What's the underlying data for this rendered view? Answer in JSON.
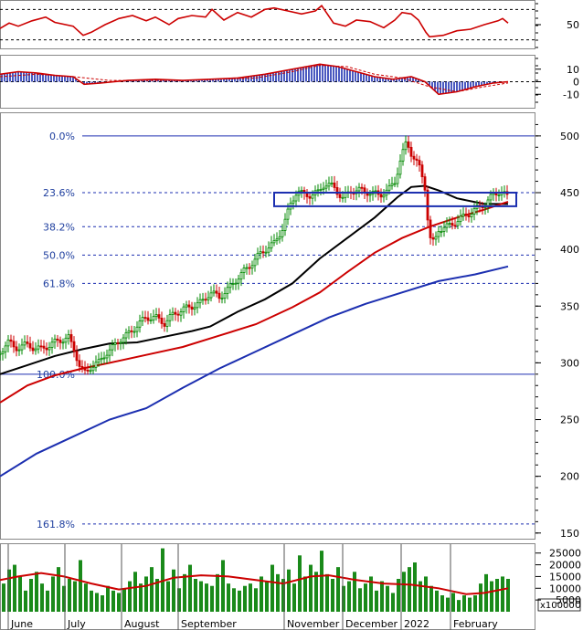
{
  "chart_data": [
    {
      "type": "line",
      "panel": "rsi",
      "y_ticks": [
        50
      ],
      "guide_levels": [
        30,
        70
      ],
      "ylim": [
        20,
        80
      ],
      "series": [
        {
          "color": "#cc0000",
          "x": [
            0,
            10,
            20,
            35,
            50,
            60,
            80,
            91,
            100,
            115,
            130,
            145,
            160,
            170,
            185,
            195,
            210,
            225,
            232,
            245,
            260,
            275,
            290,
            300,
            315,
            330,
            345,
            352,
            365,
            378,
            390,
            405,
            420,
            432,
            440,
            450,
            458,
            466,
            470,
            485,
            500,
            515,
            530,
            545,
            550,
            556
          ],
          "y": [
            45,
            52,
            48,
            55,
            60,
            53,
            48,
            36,
            40,
            50,
            58,
            62,
            55,
            60,
            50,
            58,
            62,
            60,
            70,
            56,
            66,
            60,
            70,
            72,
            68,
            64,
            68,
            75,
            52,
            48,
            56,
            54,
            46,
            56,
            66,
            64,
            56,
            40,
            34,
            36,
            42,
            44,
            50,
            55,
            58,
            52
          ]
        }
      ]
    },
    {
      "type": "line",
      "panel": "macd",
      "y_ticks": [
        10,
        0,
        -10
      ],
      "ylim": [
        -20,
        20
      ],
      "series": [
        {
          "color": "#cc0000",
          "x": [
            0,
            20,
            40,
            60,
            80,
            92,
            110,
            140,
            170,
            200,
            230,
            260,
            290,
            320,
            350,
            370,
            390,
            410,
            430,
            450,
            465,
            480,
            500,
            520,
            540,
            556
          ],
          "y": [
            6,
            8,
            7,
            5,
            4,
            -2,
            -1,
            1,
            2,
            1,
            2,
            3,
            6,
            10,
            14,
            12,
            8,
            4,
            2,
            4,
            0,
            -10,
            -8,
            -4,
            -1,
            0
          ]
        },
        {
          "color": "#cc0000",
          "dashed": true,
          "x": [
            0,
            40,
            80,
            120,
            160,
            200,
            240,
            280,
            320,
            350,
            380,
            410,
            440,
            470,
            500,
            530,
            556
          ],
          "y": [
            4,
            6,
            4,
            1,
            1,
            1,
            2,
            3,
            8,
            13,
            12,
            6,
            3,
            -4,
            -8,
            -4,
            -1
          ]
        }
      ]
    },
    {
      "type": "line",
      "panel": "price",
      "x_labels": [
        "June",
        "July",
        "August",
        "September",
        "November",
        "December",
        "2022",
        "February"
      ],
      "y_ticks": [
        500,
        450,
        400,
        350,
        300,
        250,
        200,
        150
      ],
      "ylim": [
        145,
        520
      ],
      "fibonacci": [
        {
          "label": "0.0%",
          "value": 500
        },
        {
          "label": "23.6%",
          "value": 450
        },
        {
          "label": "38.2%",
          "value": 420
        },
        {
          "label": "50.0%",
          "value": 395
        },
        {
          "label": "61.8%",
          "value": 370
        },
        {
          "label": "100.0%",
          "value": 290
        },
        {
          "label": "161.8%",
          "value": 158
        }
      ],
      "box": {
        "x0": 300,
        "x1": 565,
        "y_top": 450,
        "y_bottom": 438
      },
      "series": [
        {
          "color": "#008800",
          "style": "price",
          "x": [
            0,
            8,
            16,
            25,
            35,
            45,
            55,
            65,
            75,
            82,
            88,
            93,
            100,
            108,
            115,
            122,
            130,
            140,
            150,
            160,
            170,
            180,
            190,
            200,
            210,
            220,
            230,
            240,
            250,
            260,
            270,
            280,
            290,
            300,
            310,
            318,
            325,
            332,
            340,
            348,
            355,
            365,
            375,
            385,
            395,
            405,
            415,
            425,
            432,
            438,
            445,
            450,
            455,
            460,
            465,
            470,
            475,
            480,
            490,
            500,
            510,
            520,
            530,
            540,
            548,
            556
          ],
          "y": [
            308,
            320,
            312,
            316,
            314,
            312,
            316,
            320,
            322,
            310,
            295,
            291,
            297,
            300,
            308,
            312,
            320,
            325,
            333,
            340,
            340,
            335,
            343,
            347,
            350,
            353,
            362,
            358,
            365,
            375,
            383,
            392,
            400,
            405,
            420,
            440,
            452,
            448,
            448,
            450,
            458,
            455,
            445,
            452,
            452,
            450,
            448,
            452,
            460,
            478,
            495,
            485,
            478,
            470,
            455,
            410,
            405,
            418,
            420,
            425,
            430,
            435,
            440,
            448,
            452,
            445
          ]
        },
        {
          "color": "#000000",
          "x": [
            0,
            30,
            60,
            90,
            120,
            150,
            180,
            210,
            230,
            260,
            290,
            320,
            350,
            380,
            410,
            435,
            450,
            465,
            480,
            500,
            530,
            556
          ],
          "y": [
            290,
            298,
            306,
            312,
            317,
            318,
            323,
            328,
            332,
            345,
            356,
            370,
            392,
            410,
            428,
            446,
            455,
            456,
            452,
            445,
            440,
            440
          ]
        },
        {
          "color": "#cc0000",
          "x": [
            0,
            30,
            60,
            90,
            120,
            160,
            200,
            240,
            280,
            320,
            350,
            380,
            410,
            440,
            470,
            500,
            530,
            556
          ],
          "y": [
            265,
            280,
            289,
            295,
            300,
            307,
            314,
            324,
            334,
            349,
            362,
            380,
            397,
            410,
            420,
            428,
            435,
            442
          ]
        },
        {
          "color": "#1c2fb0",
          "x": [
            0,
            40,
            80,
            120,
            160,
            200,
            240,
            280,
            320,
            360,
            400,
            440,
            480,
            520,
            556
          ],
          "y": [
            200,
            220,
            235,
            250,
            260,
            278,
            295,
            310,
            325,
            340,
            352,
            362,
            372,
            378,
            385
          ]
        }
      ]
    },
    {
      "type": "bar",
      "panel": "volume",
      "y_ticks": [
        25000,
        20000,
        15000,
        10000,
        5000
      ],
      "unit_label": "x10000",
      "ylim": [
        0,
        28000
      ],
      "bars": {
        "color": "#1a8a1a",
        "x": [
          4,
          10,
          16,
          22,
          28,
          34,
          40,
          46,
          52,
          58,
          64,
          70,
          76,
          82,
          88,
          94,
          100,
          106,
          112,
          118,
          124,
          130,
          136,
          142,
          148,
          154,
          160,
          166,
          172,
          178,
          184,
          190,
          196,
          202,
          208,
          214,
          220,
          226,
          232,
          238,
          244,
          250,
          256,
          262,
          268,
          274,
          280,
          286,
          292,
          298,
          304,
          310,
          316,
          322,
          328,
          334,
          340,
          346,
          352,
          358,
          364,
          370,
          376,
          382,
          388,
          394,
          400,
          406,
          412,
          418,
          424,
          430,
          436,
          442,
          448,
          454,
          460,
          466,
          472,
          478,
          484,
          490,
          496,
          502,
          508,
          514,
          520,
          526,
          532,
          538,
          544,
          550,
          556
        ],
        "values": [
          12000,
          18000,
          20000,
          15000,
          9000,
          14000,
          17000,
          12000,
          9000,
          15000,
          19000,
          11000,
          14000,
          13000,
          22000,
          12000,
          9000,
          8000,
          7000,
          11000,
          9000,
          8000,
          10000,
          13000,
          17000,
          12000,
          15000,
          19000,
          14000,
          27000,
          13000,
          18000,
          10000,
          16000,
          20000,
          14000,
          13000,
          12000,
          11000,
          16000,
          22000,
          12000,
          10000,
          9000,
          11000,
          12000,
          10000,
          15000,
          13000,
          20000,
          16000,
          14000,
          18000,
          12000,
          24000,
          15000,
          20000,
          17000,
          26000,
          16000,
          14000,
          19000,
          11000,
          13000,
          17000,
          10000,
          12000,
          15000,
          9000,
          13000,
          11000,
          8000,
          14000,
          17000,
          19000,
          21000,
          13000,
          15000,
          11000,
          9000,
          7000,
          6000,
          8000,
          5000,
          7000,
          6000,
          7000,
          12000,
          16000,
          13000,
          14000,
          15000,
          14000
        ]
      },
      "series": [
        {
          "color": "#cc0000",
          "x": [
            0,
            20,
            45,
            70,
            100,
            130,
            160,
            190,
            220,
            250,
            280,
            310,
            340,
            360,
            390,
            420,
            450,
            480,
            510,
            530,
            556
          ],
          "y": [
            13500,
            15000,
            16500,
            15000,
            12000,
            9500,
            11000,
            14500,
            15500,
            15000,
            13500,
            12000,
            15000,
            15500,
            13500,
            12000,
            11500,
            10000,
            7500,
            8000,
            10000
          ]
        }
      ]
    }
  ]
}
